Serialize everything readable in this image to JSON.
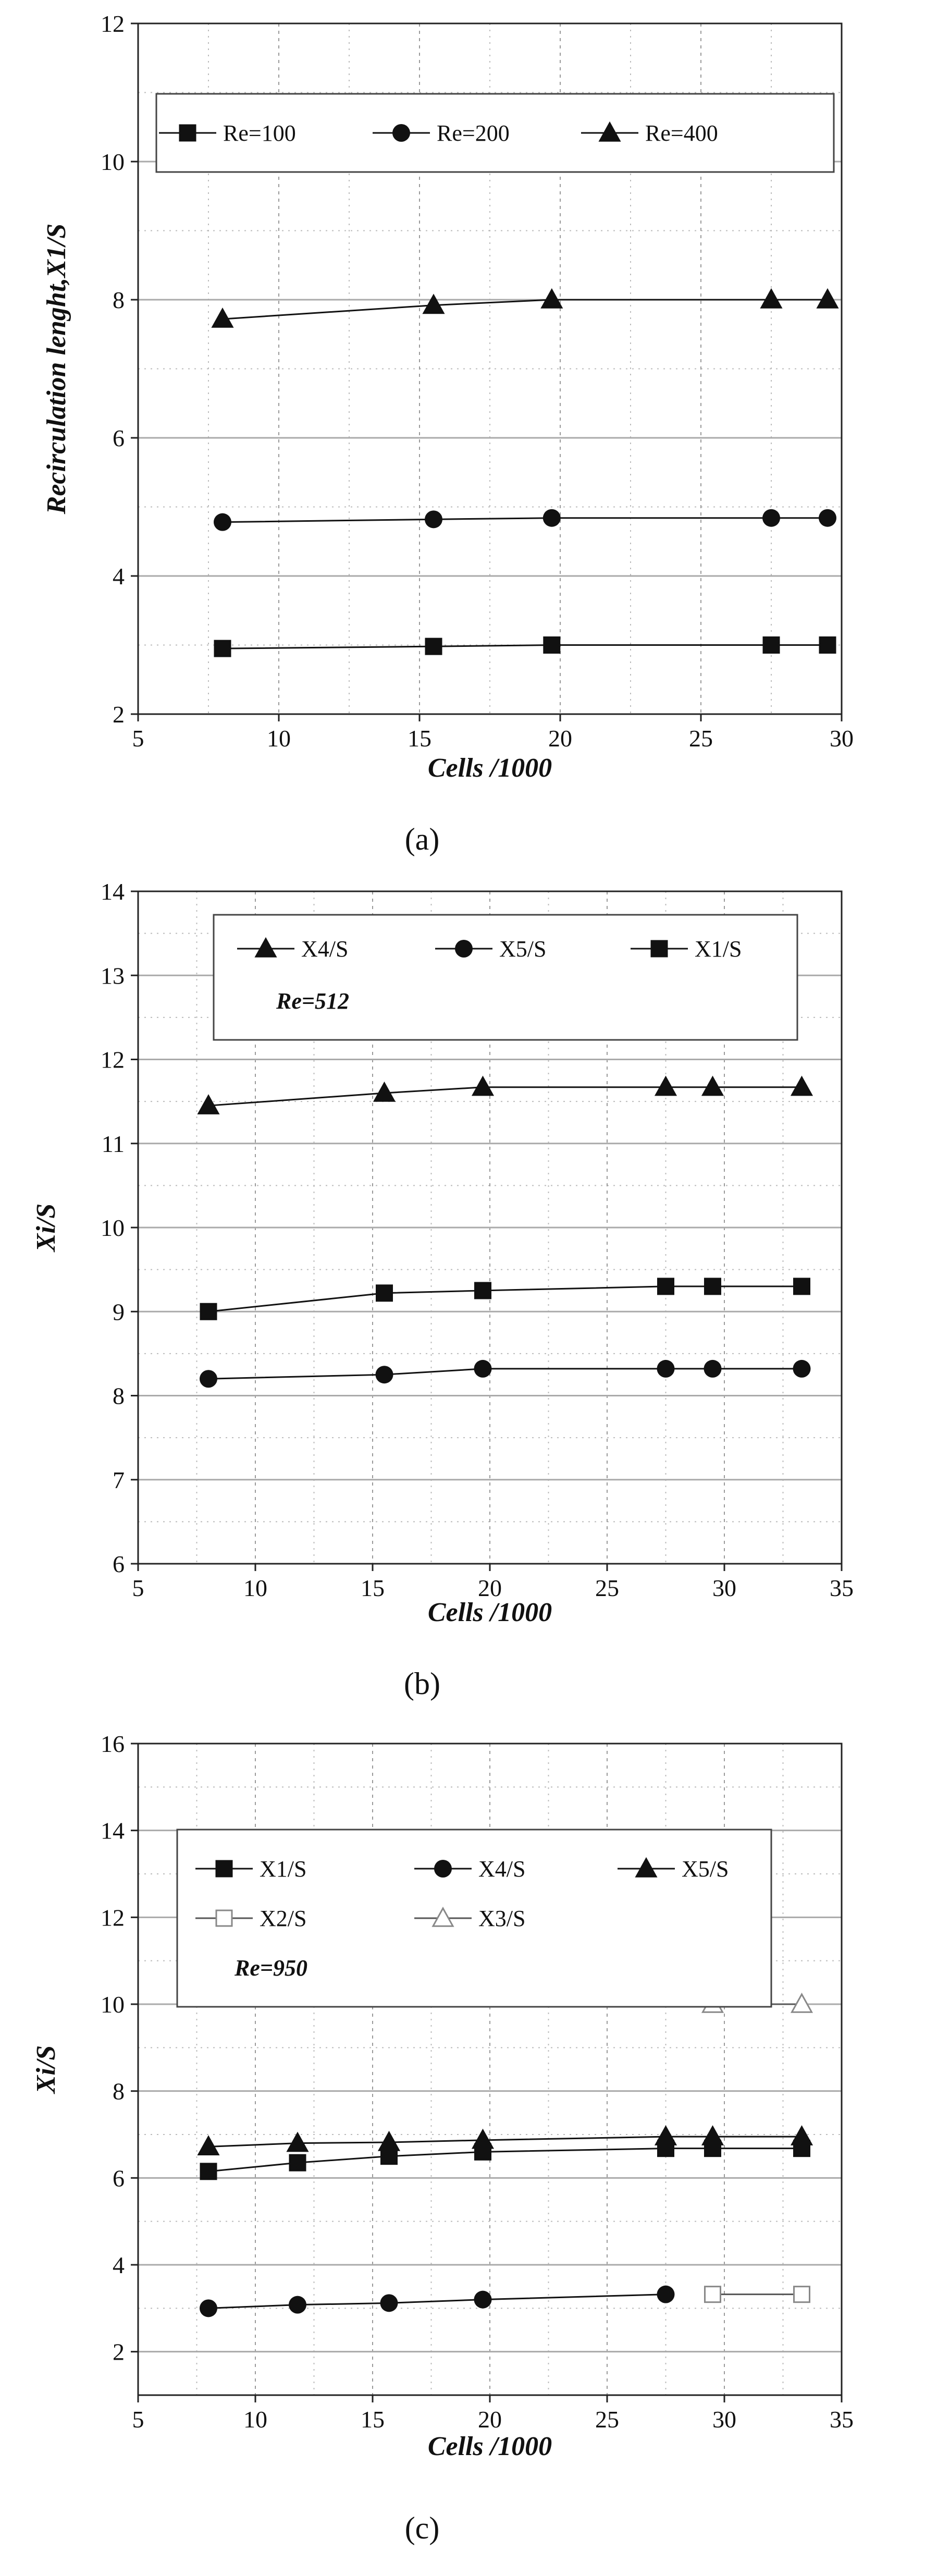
{
  "chart_data": [
    {
      "type": "line",
      "panel_label": "(a)",
      "xlabel": "Cells /1000",
      "ylabel": "Recirculation lenght,X1/S",
      "xlim": [
        5,
        30
      ],
      "ylim": [
        2,
        12
      ],
      "xticks": [
        5,
        10,
        15,
        20,
        25,
        30
      ],
      "yticks": [
        2,
        4,
        6,
        8,
        10,
        12
      ],
      "grid": true,
      "legend_position": "top",
      "legend_note": "",
      "series": [
        {
          "name": "Re=100",
          "marker": "square",
          "x": [
            8,
            15.5,
            19.7,
            27.5,
            29.5
          ],
          "y": [
            2.95,
            2.98,
            3.0,
            3.0,
            3.0
          ]
        },
        {
          "name": "Re=200",
          "marker": "circle",
          "x": [
            8,
            15.5,
            19.7,
            27.5,
            29.5
          ],
          "y": [
            4.78,
            4.82,
            4.84,
            4.84,
            4.84
          ]
        },
        {
          "name": "Re=400",
          "marker": "triangle",
          "x": [
            8,
            15.5,
            19.7,
            27.5,
            29.5
          ],
          "y": [
            7.72,
            7.92,
            8.0,
            8.0,
            8.0
          ]
        }
      ]
    },
    {
      "type": "line",
      "panel_label": "(b)",
      "xlabel": "Cells /1000",
      "ylabel": "Xi/S",
      "xlim": [
        5,
        35
      ],
      "ylim": [
        6,
        14
      ],
      "xticks": [
        5,
        10,
        15,
        20,
        25,
        30,
        35
      ],
      "yticks": [
        6,
        7,
        8,
        9,
        10,
        11,
        12,
        13,
        14
      ],
      "grid": true,
      "legend_position": "top",
      "legend_note": "Re=512",
      "series": [
        {
          "name": "X4/S",
          "marker": "triangle",
          "x": [
            8,
            15.5,
            19.7,
            27.5,
            29.5,
            33.3
          ],
          "y": [
            11.45,
            11.6,
            11.67,
            11.67,
            11.67,
            11.67
          ]
        },
        {
          "name": "X5/S",
          "marker": "circle",
          "x": [
            8,
            15.5,
            19.7,
            27.5,
            29.5,
            33.3
          ],
          "y": [
            8.2,
            8.25,
            8.32,
            8.32,
            8.32,
            8.32
          ]
        },
        {
          "name": "X1/S",
          "marker": "square",
          "x": [
            8,
            15.5,
            19.7,
            27.5,
            29.5,
            33.3
          ],
          "y": [
            9.0,
            9.22,
            9.25,
            9.3,
            9.3,
            9.3
          ]
        }
      ]
    },
    {
      "type": "line",
      "panel_label": "(c)",
      "xlabel": "Cells /1000",
      "ylabel": "Xi/S",
      "xlim": [
        5,
        35
      ],
      "ylim": [
        1,
        16
      ],
      "xticks": [
        5,
        10,
        15,
        20,
        25,
        30,
        35
      ],
      "yticks": [
        2,
        4,
        6,
        8,
        10,
        12,
        14,
        16
      ],
      "grid": true,
      "legend_position": "top",
      "legend_note": "Re=950",
      "series": [
        {
          "name": "X1/S",
          "marker": "square",
          "x": [
            8,
            11.8,
            15.7,
            19.7,
            27.5,
            29.5,
            33.3
          ],
          "y": [
            6.15,
            6.35,
            6.5,
            6.6,
            6.68,
            6.68,
            6.68
          ]
        },
        {
          "name": "X4/S",
          "marker": "circle",
          "x": [
            8,
            11.8,
            15.7,
            19.7,
            27.5
          ],
          "y": [
            3.0,
            3.08,
            3.12,
            3.2,
            3.32
          ]
        },
        {
          "name": "X5/S",
          "marker": "triangle",
          "x": [
            8,
            11.8,
            15.7,
            19.7,
            27.5,
            29.5,
            33.3
          ],
          "y": [
            6.72,
            6.8,
            6.82,
            6.87,
            6.95,
            6.95,
            6.95
          ]
        },
        {
          "name": "X2/S",
          "marker": "square-open",
          "x": [
            29.5,
            33.3
          ],
          "y": [
            3.32,
            3.32
          ]
        },
        {
          "name": "X3/S",
          "marker": "triangle-open",
          "x": [
            29.5,
            33.3
          ],
          "y": [
            10.0,
            10.0
          ]
        }
      ]
    }
  ]
}
